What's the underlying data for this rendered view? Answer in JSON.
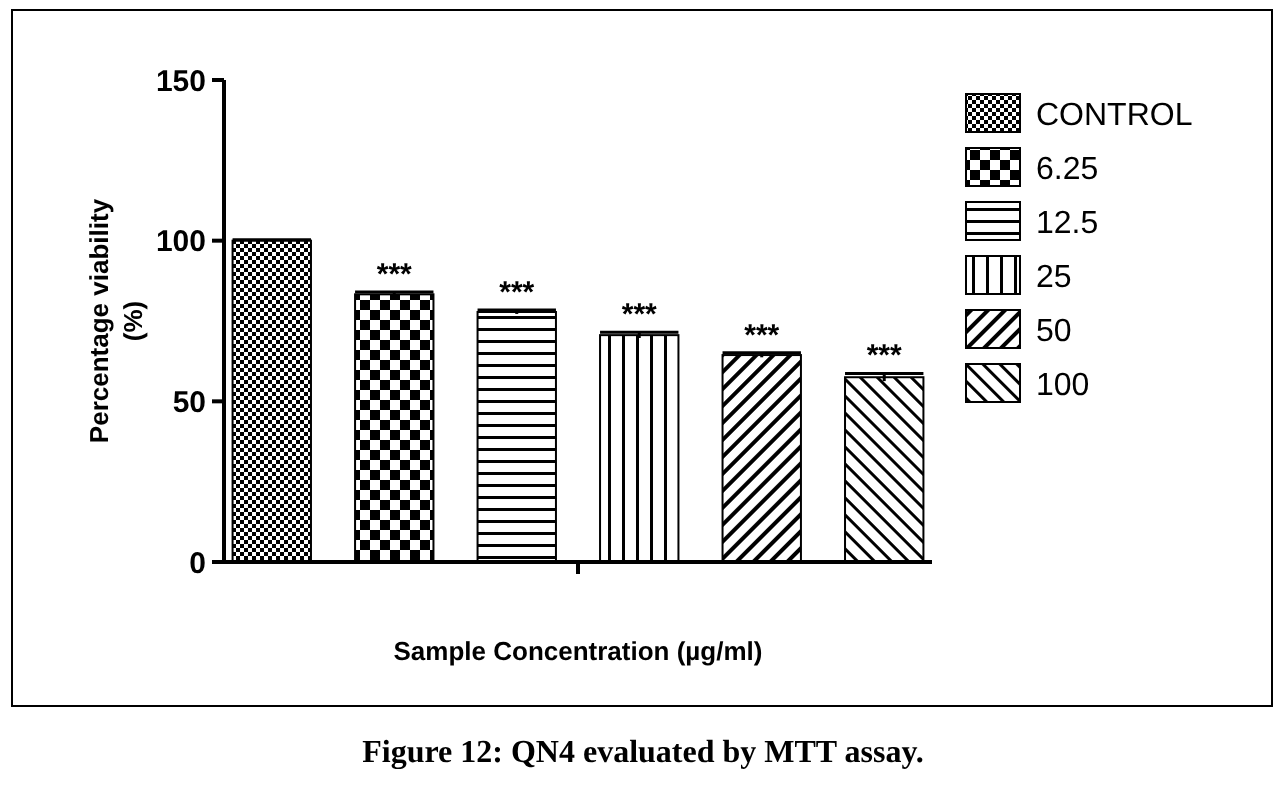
{
  "chart_data": {
    "type": "bar",
    "xlabel": "Sample Concentration (µg/ml)",
    "ylabel": "Percentage viability (%)",
    "categories": [
      null,
      null,
      null,
      null,
      null,
      null
    ],
    "ylim": [
      0,
      150
    ],
    "yticks": [
      0,
      50,
      100,
      150
    ],
    "legend": "right",
    "grid": false,
    "series": [
      {
        "name": "CONTROL",
        "color": "#000000",
        "values": [
          100,
          null,
          null,
          null,
          null,
          null
        ],
        "errors": [
          0.3,
          null,
          null,
          null,
          null,
          null
        ]
      },
      {
        "name": "6.25",
        "color": "#000000",
        "values": [
          null,
          83.3,
          null,
          null,
          null,
          null
        ],
        "errors": [
          null,
          0.7,
          null,
          null,
          null,
          null
        ],
        "value_labels": [
          null,
          "***",
          null,
          null,
          null,
          null
        ]
      },
      {
        "name": "12.5",
        "color": "#000000",
        "values": [
          null,
          null,
          77.8,
          null,
          null,
          null
        ],
        "errors": [
          null,
          null,
          0.6,
          null,
          null,
          null
        ],
        "value_labels": [
          null,
          null,
          "***",
          null,
          null,
          null
        ]
      },
      {
        "name": "25",
        "color": "#000000",
        "values": [
          null,
          null,
          null,
          70.6,
          null,
          null
        ],
        "errors": [
          null,
          null,
          null,
          0.9,
          null,
          null
        ],
        "value_labels": [
          null,
          null,
          null,
          "***",
          null,
          null
        ]
      },
      {
        "name": "50",
        "color": "#000000",
        "values": [
          null,
          null,
          null,
          null,
          64.4,
          null
        ],
        "errors": [
          null,
          null,
          null,
          null,
          0.7,
          null
        ],
        "value_labels": [
          null,
          null,
          null,
          null,
          "***",
          null
        ]
      },
      {
        "name": "100",
        "color": "#000000",
        "values": [
          null,
          null,
          null,
          null,
          null,
          57.5
        ],
        "errors": [
          null,
          null,
          null,
          null,
          null,
          1.2
        ],
        "value_labels": [
          null,
          null,
          null,
          null,
          null,
          "***"
        ]
      }
    ],
    "annotations": [
      "Figure 12: QN4 evaluated by MTT assay."
    ]
  }
}
